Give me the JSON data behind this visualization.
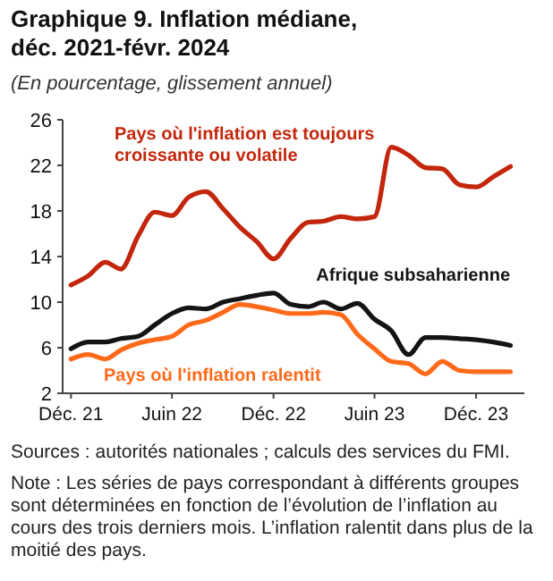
{
  "chart_data": {
    "type": "line",
    "title": "Graphique 9. Inflation médiane, déc. 2021-févr. 2024",
    "subtitle": "(En pourcentage, glissement annuel)",
    "x": [
      "2021-12",
      "2022-01",
      "2022-02",
      "2022-03",
      "2022-04",
      "2022-05",
      "2022-06",
      "2022-07",
      "2022-08",
      "2022-09",
      "2022-10",
      "2022-11",
      "2022-12",
      "2023-01",
      "2023-02",
      "2023-03",
      "2023-04",
      "2023-05",
      "2023-06",
      "2023-07",
      "2023-08",
      "2023-09",
      "2023-10",
      "2023-11",
      "2023-12",
      "2024-01",
      "2024-02"
    ],
    "series": [
      {
        "name": "Pays où l'inflation est toujours croissante ou volatile",
        "color": "#c3260c",
        "values": [
          11.5,
          12.3,
          13.5,
          12.9,
          15.8,
          17.9,
          17.6,
          19.2,
          19.7,
          18.2,
          16.6,
          15.3,
          13.8,
          15.6,
          17.0,
          17.1,
          17.5,
          17.3,
          17.5,
          23.6,
          22.9,
          21.8,
          21.7,
          20.3,
          20.1,
          21.0,
          21.9
        ]
      },
      {
        "name": "Afrique subsaharienne",
        "color": "#141414",
        "values": [
          5.9,
          6.5,
          6.5,
          6.8,
          7.0,
          8.0,
          9.0,
          9.5,
          9.4,
          10.0,
          10.3,
          10.6,
          10.8,
          9.8,
          9.6,
          10.0,
          9.4,
          9.9,
          8.5,
          7.5,
          5.4,
          6.9,
          6.9,
          6.8,
          6.7,
          6.5,
          6.2
        ]
      },
      {
        "name": "Pays où l'inflation ralentit",
        "color": "#ff6a1a",
        "values": [
          5.0,
          5.4,
          5.0,
          5.8,
          6.4,
          6.7,
          7.0,
          8.0,
          8.4,
          9.1,
          9.8,
          9.6,
          9.3,
          9.0,
          9.0,
          9.1,
          8.9,
          7.2,
          5.9,
          4.8,
          4.6,
          3.7,
          4.8,
          4.0,
          3.9,
          3.9,
          3.9
        ]
      }
    ],
    "xlim": [
      "2021-11-16",
      "2024-02-26"
    ],
    "xticks": [
      {
        "value": "2021-12",
        "label": "Déc. 21"
      },
      {
        "value": "2022-06",
        "label": "Juin 22"
      },
      {
        "value": "2022-12",
        "label": "Déc. 22"
      },
      {
        "value": "2023-06",
        "label": "Juin 23"
      },
      {
        "value": "2023-12",
        "label": "Déc. 23"
      }
    ],
    "ylim": [
      2,
      26
    ],
    "yticks": [
      2,
      6,
      10,
      14,
      18,
      22,
      26
    ],
    "grid": false,
    "marker": "none",
    "line_style": "solid",
    "annotations": [
      "Sources : autorités nationales ; calculs des services du FMI.",
      "Note : Les séries de pays correspondant à différents groupes sont déterminées en fonction de l’évolution de l’inflation au cours des trois derniers mois. L’inflation ralentit dans plus de la moitié des pays."
    ]
  }
}
